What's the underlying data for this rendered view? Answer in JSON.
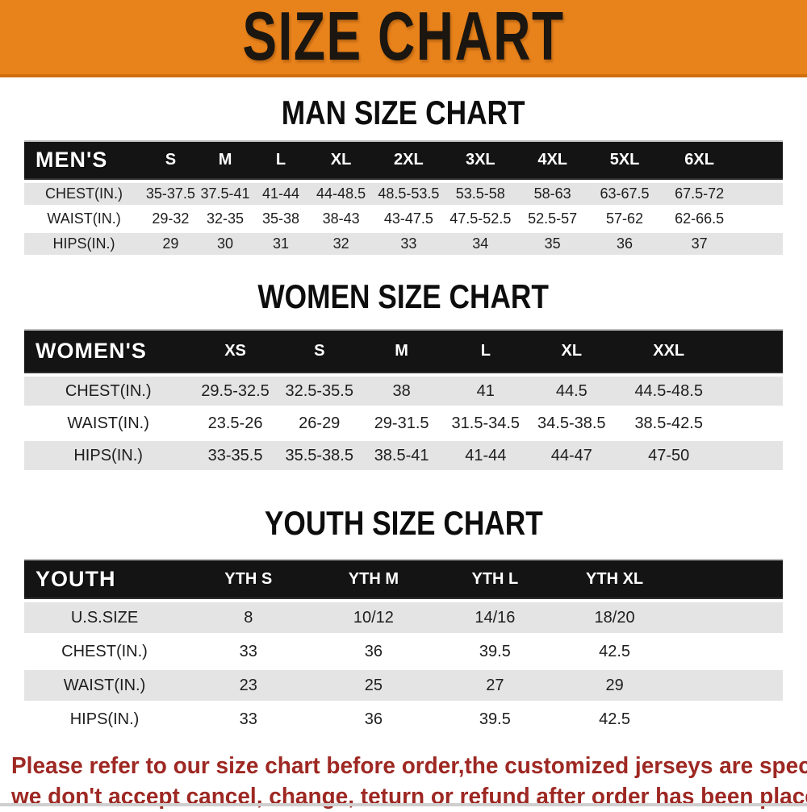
{
  "banner": {
    "title": "SIZE CHART",
    "bg_color": "#E8821B",
    "text_color": "#1b1610"
  },
  "sections": [
    {
      "heading": "MAN SIZE CHART",
      "group_label": "MEN'S",
      "columns": [
        "S",
        "M",
        "L",
        "XL",
        "2XL",
        "3XL",
        "4XL",
        "5XL",
        "6XL"
      ],
      "rows": [
        {
          "label": "CHEST(IN.)",
          "values": [
            "35-37.5",
            "37.5-41",
            "41-44",
            "44-48.5",
            "48.5-53.5",
            "53.5-58",
            "58-63",
            "63-67.5",
            "67.5-72"
          ]
        },
        {
          "label": "WAIST(IN.)",
          "values": [
            "29-32",
            "32-35",
            "35-38",
            "38-43",
            "43-47.5",
            "47.5-52.5",
            "52.5-57",
            "57-62",
            "62-66.5"
          ]
        },
        {
          "label": "HIPS(IN.)",
          "values": [
            "29",
            "30",
            "31",
            "32",
            "33",
            "34",
            "35",
            "36",
            "37"
          ]
        }
      ]
    },
    {
      "heading": "WOMEN SIZE CHART",
      "group_label": "WOMEN'S",
      "columns": [
        "XS",
        "S",
        "M",
        "L",
        "XL",
        "XXL"
      ],
      "rows": [
        {
          "label": "CHEST(IN.)",
          "values": [
            "29.5-32.5",
            "32.5-35.5",
            "38",
            "41",
            "44.5",
            "44.5-48.5"
          ]
        },
        {
          "label": "WAIST(IN.)",
          "values": [
            "23.5-26",
            "26-29",
            "29-31.5",
            "31.5-34.5",
            "34.5-38.5",
            "38.5-42.5"
          ]
        },
        {
          "label": "HIPS(IN.)",
          "values": [
            "33-35.5",
            "35.5-38.5",
            "38.5-41",
            "41-44",
            "44-47",
            "47-50"
          ]
        }
      ]
    },
    {
      "heading": "YOUTH SIZE CHART",
      "group_label": "YOUTH",
      "columns": [
        "YTH S",
        "YTH M",
        "YTH L",
        "YTH XL"
      ],
      "rows": [
        {
          "label": "U.S.SIZE",
          "values": [
            "8",
            "10/12",
            "14/16",
            "18/20"
          ]
        },
        {
          "label": "CHEST(IN.)",
          "values": [
            "33",
            "36",
            "39.5",
            "42.5"
          ]
        },
        {
          "label": "WAIST(IN.)",
          "values": [
            "23",
            "25",
            "27",
            "29"
          ]
        },
        {
          "label": "HIPS(IN.)",
          "values": [
            "33",
            "36",
            "39.5",
            "42.5"
          ]
        }
      ]
    }
  ],
  "footer": {
    "line1": "Please refer to our size chart before order,the customized jerseys are special products,",
    "line2": "we don't accept cancel, change, teturn or refund after order has been placed!",
    "text_color": "#9E2823"
  }
}
